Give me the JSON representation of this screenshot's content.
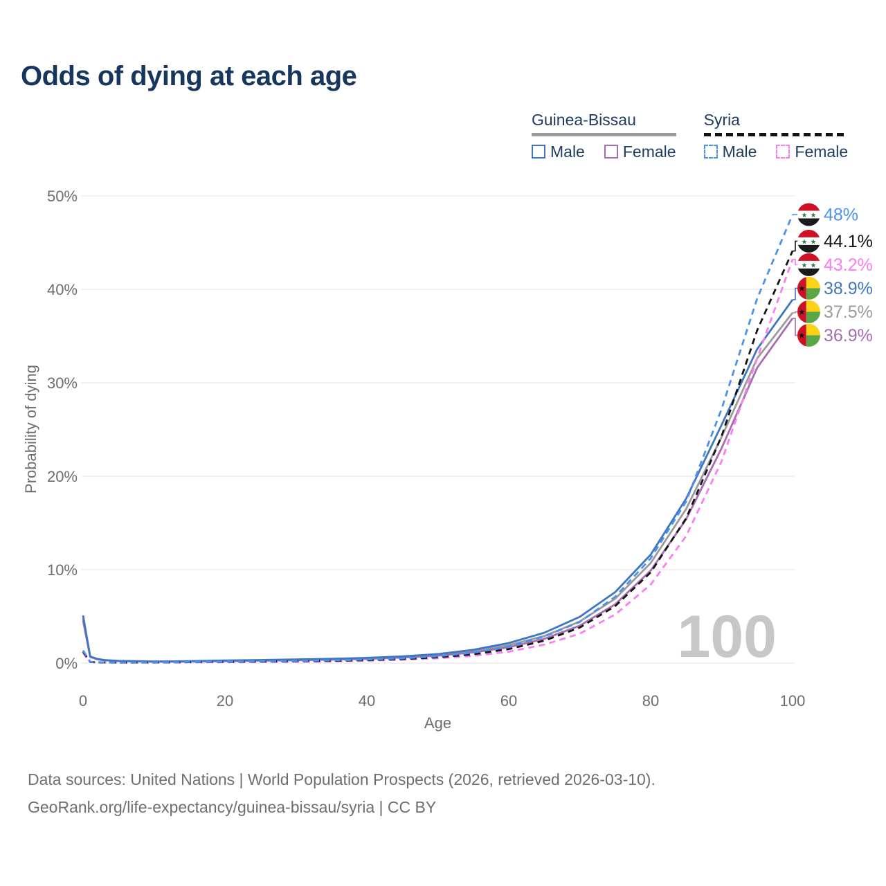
{
  "title": "Odds of dying at each age",
  "legend": {
    "groups": [
      {
        "id": "guinea-bissau",
        "label": "Guinea-Bissau",
        "rule_color": "#9a9a9a",
        "rule_style": "solid",
        "items": [
          {
            "id": "gb-male",
            "label": "Male",
            "color": "#3f76c2",
            "dashed": false
          },
          {
            "id": "gb-female",
            "label": "Female",
            "color": "#a76db1",
            "dashed": false
          }
        ]
      },
      {
        "id": "syria",
        "label": "Syria",
        "rule_color": "#141414",
        "rule_style": "dashed",
        "items": [
          {
            "id": "syria-male",
            "label": "Male",
            "color": "#4b92ec",
            "dashed": true
          },
          {
            "id": "syria-female",
            "label": "Female",
            "color": "#fa7df2",
            "dashed": true
          }
        ]
      }
    ]
  },
  "chart_data": {
    "type": "line",
    "title": "Odds of dying at each age",
    "xlabel": "Age",
    "ylabel": "Probability of dying",
    "xlim": [
      0,
      100
    ],
    "ylim": [
      0,
      50
    ],
    "xticks": [
      0,
      20,
      40,
      60,
      80,
      100
    ],
    "yticks": [
      0,
      10,
      20,
      30,
      40,
      50
    ],
    "ytick_suffix": "%",
    "grid": true,
    "legend_position": "top-right",
    "watermark_age": "100",
    "series": [
      {
        "id": "gb-total",
        "name": "Guinea-Bissau (both sexes)",
        "country": "Guinea-Bissau",
        "sex": "total",
        "color": "#9b9b9b",
        "dashed": false,
        "end_label": "37.5%",
        "flag": "guinea-bissau",
        "points": [
          [
            0,
            4.8
          ],
          [
            1,
            0.69
          ],
          [
            2,
            0.43
          ],
          [
            3,
            0.31
          ],
          [
            5,
            0.23
          ],
          [
            10,
            0.16
          ],
          [
            15,
            0.19
          ],
          [
            20,
            0.25
          ],
          [
            25,
            0.29
          ],
          [
            30,
            0.35
          ],
          [
            35,
            0.41
          ],
          [
            40,
            0.51
          ],
          [
            45,
            0.66
          ],
          [
            50,
            0.88
          ],
          [
            55,
            1.28
          ],
          [
            60,
            1.92
          ],
          [
            65,
            2.9
          ],
          [
            70,
            4.45
          ],
          [
            75,
            6.9
          ],
          [
            80,
            10.7
          ],
          [
            85,
            16.5
          ],
          [
            90,
            24.2
          ],
          [
            95,
            32.6
          ],
          [
            100,
            37.5
          ]
        ]
      },
      {
        "id": "gb-female",
        "name": "Guinea-Bissau Female",
        "country": "Guinea-Bissau",
        "sex": "female",
        "color": "#a76db1",
        "dashed": false,
        "end_label": "36.9%",
        "flag": "guinea-bissau",
        "points": [
          [
            0,
            4.55
          ],
          [
            1,
            0.66
          ],
          [
            2,
            0.41
          ],
          [
            3,
            0.3
          ],
          [
            5,
            0.22
          ],
          [
            10,
            0.15
          ],
          [
            15,
            0.17
          ],
          [
            20,
            0.22
          ],
          [
            25,
            0.26
          ],
          [
            30,
            0.31
          ],
          [
            35,
            0.37
          ],
          [
            40,
            0.46
          ],
          [
            45,
            0.6
          ],
          [
            50,
            0.8
          ],
          [
            55,
            1.15
          ],
          [
            60,
            1.7
          ],
          [
            65,
            2.6
          ],
          [
            70,
            4.0
          ],
          [
            75,
            6.3
          ],
          [
            80,
            9.9
          ],
          [
            85,
            15.4
          ],
          [
            90,
            23.0
          ],
          [
            95,
            31.6
          ],
          [
            100,
            36.9
          ]
        ]
      },
      {
        "id": "gb-male",
        "name": "Guinea-Bissau Male",
        "country": "Guinea-Bissau",
        "sex": "male",
        "color": "#3f76c2",
        "dashed": false,
        "end_label": "38.9%",
        "flag": "guinea-bissau",
        "points": [
          [
            0,
            5.1
          ],
          [
            1,
            0.72
          ],
          [
            2,
            0.45
          ],
          [
            3,
            0.33
          ],
          [
            5,
            0.24
          ],
          [
            10,
            0.18
          ],
          [
            15,
            0.21
          ],
          [
            20,
            0.28
          ],
          [
            25,
            0.33
          ],
          [
            30,
            0.39
          ],
          [
            35,
            0.46
          ],
          [
            40,
            0.56
          ],
          [
            45,
            0.72
          ],
          [
            50,
            0.97
          ],
          [
            55,
            1.42
          ],
          [
            60,
            2.15
          ],
          [
            65,
            3.25
          ],
          [
            70,
            4.95
          ],
          [
            75,
            7.6
          ],
          [
            80,
            11.6
          ],
          [
            85,
            17.6
          ],
          [
            90,
            25.5
          ],
          [
            95,
            33.6
          ],
          [
            100,
            38.9
          ]
        ]
      },
      {
        "id": "syria-female",
        "name": "Syria Female",
        "country": "Syria",
        "sex": "female",
        "color": "#fa7df2",
        "dashed": true,
        "end_label": "43.2%",
        "flag": "syria",
        "points": [
          [
            0,
            1.1
          ],
          [
            1,
            0.11
          ],
          [
            2,
            0.07
          ],
          [
            5,
            0.05
          ],
          [
            10,
            0.06
          ],
          [
            15,
            0.08
          ],
          [
            20,
            0.1
          ],
          [
            25,
            0.12
          ],
          [
            30,
            0.15
          ],
          [
            35,
            0.19
          ],
          [
            40,
            0.26
          ],
          [
            45,
            0.36
          ],
          [
            50,
            0.52
          ],
          [
            55,
            0.78
          ],
          [
            60,
            1.22
          ],
          [
            65,
            1.98
          ],
          [
            70,
            3.15
          ],
          [
            75,
            5.2
          ],
          [
            80,
            8.4
          ],
          [
            85,
            13.6
          ],
          [
            90,
            21.6
          ],
          [
            95,
            32.6
          ],
          [
            100,
            43.2
          ]
        ]
      },
      {
        "id": "syria-total",
        "name": "Syria (both sexes)",
        "country": "Syria",
        "sex": "total",
        "color": "#141414",
        "dashed": true,
        "end_label": "44.1%",
        "flag": "syria",
        "points": [
          [
            0,
            1.22
          ],
          [
            1,
            0.12
          ],
          [
            2,
            0.08
          ],
          [
            5,
            0.06
          ],
          [
            10,
            0.07
          ],
          [
            15,
            0.1
          ],
          [
            20,
            0.14
          ],
          [
            25,
            0.16
          ],
          [
            30,
            0.2
          ],
          [
            35,
            0.24
          ],
          [
            40,
            0.32
          ],
          [
            45,
            0.44
          ],
          [
            50,
            0.62
          ],
          [
            55,
            0.95
          ],
          [
            60,
            1.5
          ],
          [
            65,
            2.4
          ],
          [
            70,
            3.8
          ],
          [
            75,
            6.1
          ],
          [
            80,
            9.7
          ],
          [
            85,
            15.5
          ],
          [
            90,
            24.3
          ],
          [
            95,
            35.6
          ],
          [
            100,
            44.1
          ]
        ]
      },
      {
        "id": "syria-male",
        "name": "Syria Male",
        "country": "Syria",
        "sex": "male",
        "color": "#4b92ec",
        "dashed": true,
        "end_label": "48%",
        "flag": "syria",
        "points": [
          [
            0,
            1.35
          ],
          [
            1,
            0.14
          ],
          [
            2,
            0.09
          ],
          [
            5,
            0.07
          ],
          [
            10,
            0.08
          ],
          [
            15,
            0.12
          ],
          [
            20,
            0.17
          ],
          [
            25,
            0.2
          ],
          [
            30,
            0.24
          ],
          [
            35,
            0.29
          ],
          [
            40,
            0.38
          ],
          [
            45,
            0.51
          ],
          [
            50,
            0.73
          ],
          [
            55,
            1.12
          ],
          [
            60,
            1.78
          ],
          [
            65,
            2.85
          ],
          [
            70,
            4.4
          ],
          [
            75,
            7.1
          ],
          [
            80,
            11.2
          ],
          [
            85,
            17.3
          ],
          [
            90,
            27.2
          ],
          [
            95,
            39.0
          ],
          [
            100,
            48.0
          ]
        ]
      }
    ],
    "flag_colors": {
      "syria": {
        "red": "#ce1126",
        "white": "#ffffff",
        "black": "#1a1a1a",
        "star_green": "#2a7f3e"
      },
      "guinea-bissau": {
        "red": "#ce1126",
        "yellow": "#fcd116",
        "green": "#5aa546",
        "star_black": "#111111"
      }
    }
  },
  "footer": {
    "line1": "Data sources: United Nations | World Population Prospects (2026, retrieved 2026-03-10).",
    "line2": "GeoRank.org/life-expectancy/guinea-bissau/syria | CC BY"
  }
}
